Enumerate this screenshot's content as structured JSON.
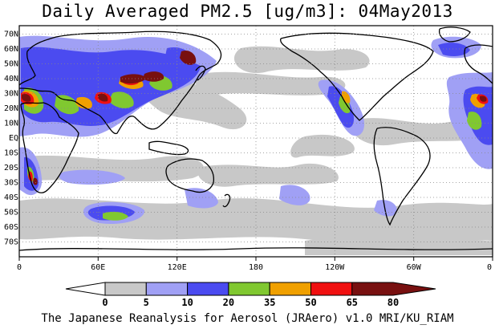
{
  "title": "Daily Averaged PM2.5 [ug/m3]: 04May2013",
  "footer": "The Japanese Reanalysis for Aerosol (JRAero) v1.0 MRI/KU_RIAM",
  "lat_labels": [
    "70N",
    "60N",
    "50N",
    "40N",
    "30N",
    "20N",
    "10N",
    "EQ",
    "10S",
    "20S",
    "30S",
    "40S",
    "50S",
    "60S",
    "70S"
  ],
  "lon_labels": [
    "0",
    "60E",
    "120E",
    "180",
    "120W",
    "60W",
    "0"
  ],
  "colorbar": {
    "boundaries": [
      "0",
      "5",
      "10",
      "20",
      "35",
      "50",
      "65",
      "80"
    ],
    "colors": [
      "#ffffff",
      "#c8c8c8",
      "#a0a0f5",
      "#4b4bf0",
      "#80c830",
      "#f0a000",
      "#f01010",
      "#781010"
    ]
  },
  "plume_colors": {
    "light": "#c8c8c8",
    "pale_blue": "#a0a0f5",
    "blue": "#4b4bf0",
    "green": "#80c830",
    "orange": "#f0a000",
    "red": "#f01010",
    "dark_red": "#781010"
  }
}
